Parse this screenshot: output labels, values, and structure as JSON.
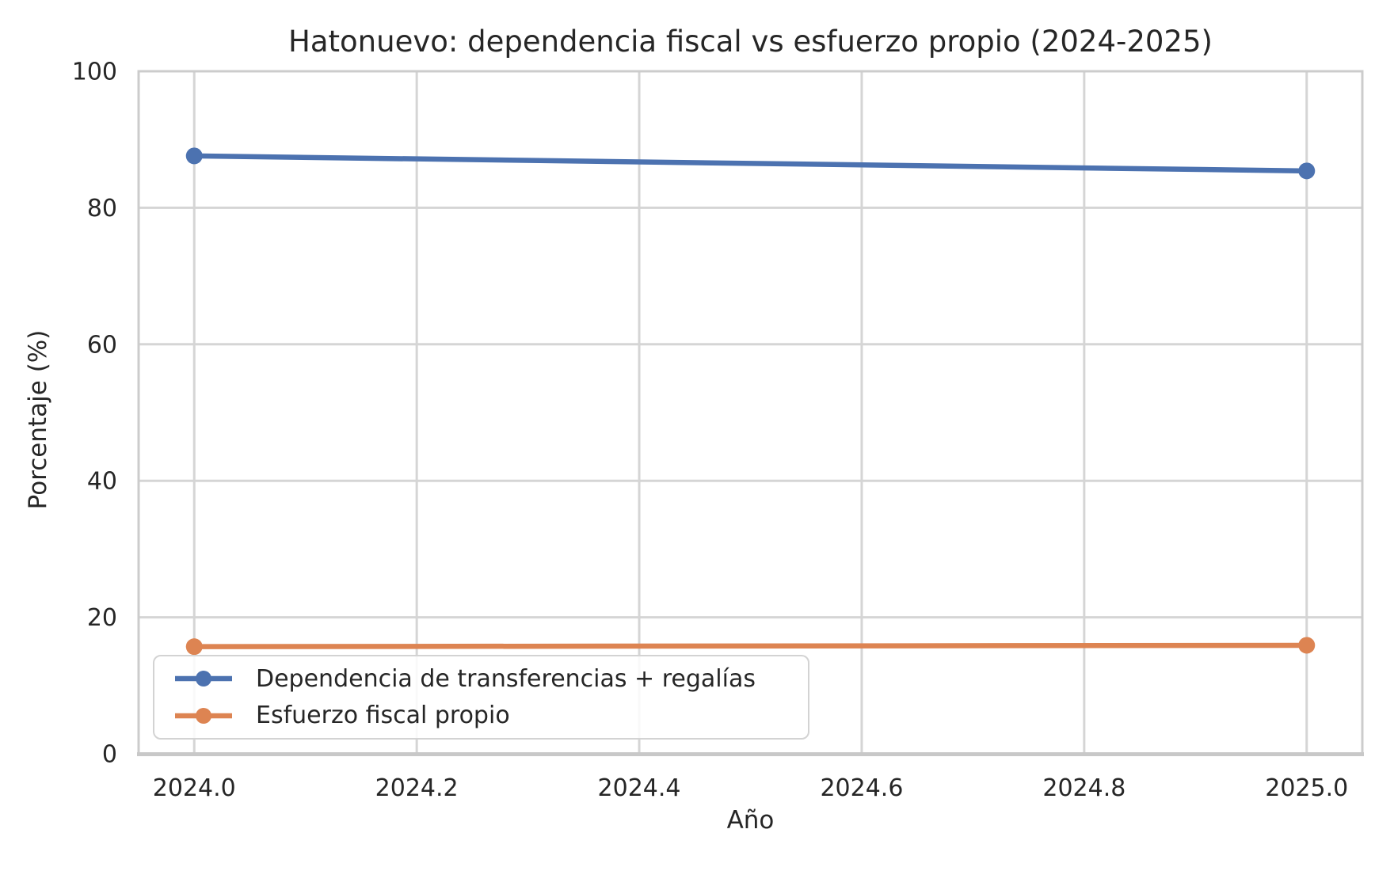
{
  "chart_data": {
    "type": "line",
    "title": "Hatonuevo: dependencia fiscal vs esfuerzo propio (2024-2025)",
    "xlabel": "Año",
    "ylabel": "Porcentaje (%)",
    "x": [
      2024,
      2025
    ],
    "series": [
      {
        "name": "Dependencia de transferencias + regalías",
        "color": "#4C72B0",
        "values": [
          87.6,
          85.4
        ]
      },
      {
        "name": "Esfuerzo fiscal propio",
        "color": "#DD8452",
        "values": [
          15.7,
          15.9
        ]
      }
    ],
    "xlim": [
      2023.95,
      2025.05
    ],
    "ylim": [
      0,
      100
    ],
    "xticks": [
      2024.0,
      2024.2,
      2024.4,
      2024.6,
      2024.8,
      2025.0
    ],
    "xtick_labels": [
      "2024.0",
      "2024.2",
      "2024.4",
      "2024.6",
      "2024.8",
      "2025.0"
    ],
    "yticks": [
      0,
      20,
      40,
      60,
      80,
      100
    ],
    "ytick_labels": [
      "0",
      "20",
      "40",
      "60",
      "80",
      "100"
    ],
    "grid": true,
    "legend_position": "lower left",
    "colors": {
      "background": "#FFFFFF",
      "grid": "#D5D5D5",
      "spine": "#CCCCCC",
      "text": "#262626"
    }
  }
}
